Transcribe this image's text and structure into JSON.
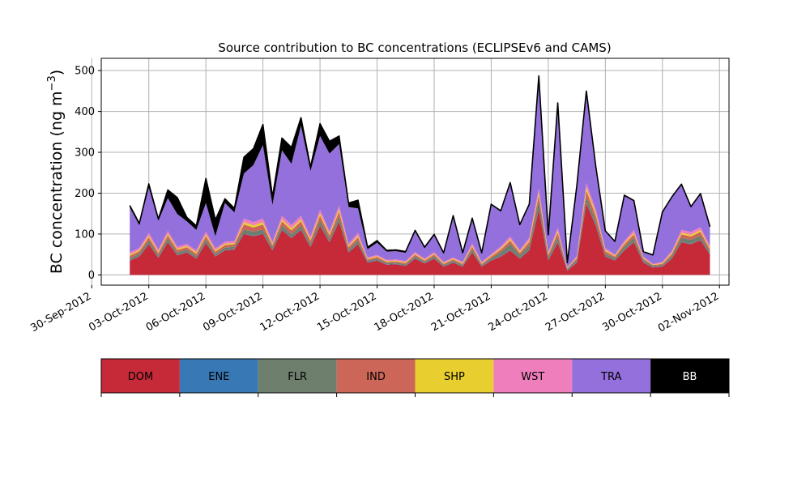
{
  "chart_data": {
    "type": "area",
    "stacked": true,
    "title": "Source contribution to BC concentrations (ECLIPSEv6 and CAMS)",
    "xlabel": "",
    "ylabel": "BC concentration (ng m",
    "ylabel_superscript": "−3",
    "ylabel_close": ")",
    "ylim": [
      -25,
      530
    ],
    "xlim": [
      "2012-09-30T12:00",
      "2012-11-02T12:00"
    ],
    "x_ticks": [
      "30-Sep-2012",
      "03-Oct-2012",
      "06-Oct-2012",
      "09-Oct-2012",
      "12-Oct-2012",
      "15-Oct-2012",
      "18-Oct-2012",
      "21-Oct-2012",
      "24-Oct-2012",
      "27-Oct-2012",
      "30-Oct-2012",
      "02-Nov-2012"
    ],
    "y_ticks": [
      0,
      100,
      200,
      300,
      400,
      500
    ],
    "grid": true,
    "legend_placement": "bottom",
    "x": [
      "2012-10-02T00:00",
      "2012-10-02T12:00",
      "2012-10-03T00:00",
      "2012-10-03T12:00",
      "2012-10-04T00:00",
      "2012-10-04T12:00",
      "2012-10-05T00:00",
      "2012-10-05T12:00",
      "2012-10-06T00:00",
      "2012-10-06T12:00",
      "2012-10-07T00:00",
      "2012-10-07T12:00",
      "2012-10-08T00:00",
      "2012-10-08T12:00",
      "2012-10-09T00:00",
      "2012-10-09T12:00",
      "2012-10-10T00:00",
      "2012-10-10T12:00",
      "2012-10-11T00:00",
      "2012-10-11T12:00",
      "2012-10-12T00:00",
      "2012-10-12T12:00",
      "2012-10-13T00:00",
      "2012-10-13T12:00",
      "2012-10-14T00:00",
      "2012-10-14T12:00",
      "2012-10-15T00:00",
      "2012-10-15T12:00",
      "2012-10-16T00:00",
      "2012-10-16T12:00",
      "2012-10-17T00:00",
      "2012-10-17T12:00",
      "2012-10-18T00:00",
      "2012-10-18T12:00",
      "2012-10-19T00:00",
      "2012-10-19T12:00",
      "2012-10-20T00:00",
      "2012-10-20T12:00",
      "2012-10-21T00:00",
      "2012-10-21T12:00",
      "2012-10-22T00:00",
      "2012-10-22T12:00",
      "2012-10-23T00:00",
      "2012-10-23T12:00",
      "2012-10-24T00:00",
      "2012-10-24T12:00",
      "2012-10-25T00:00",
      "2012-10-25T12:00",
      "2012-10-26T00:00",
      "2012-10-26T12:00",
      "2012-10-27T00:00",
      "2012-10-27T12:00",
      "2012-10-28T00:00",
      "2012-10-28T12:00",
      "2012-10-29T00:00",
      "2012-10-29T12:00",
      "2012-10-30T00:00",
      "2012-10-30T12:00",
      "2012-10-31T00:00",
      "2012-10-31T12:00",
      "2012-11-01T00:00",
      "2012-11-01T12:00"
    ],
    "series": [
      {
        "name": "DOM",
        "color": "#c62a39",
        "values": [
          35,
          45,
          75,
          42,
          80,
          48,
          55,
          40,
          78,
          45,
          60,
          62,
          100,
          95,
          100,
          60,
          110,
          90,
          110,
          68,
          120,
          80,
          130,
          55,
          75,
          30,
          35,
          25,
          26,
          22,
          40,
          28,
          40,
          20,
          30,
          20,
          55,
          20,
          35,
          45,
          60,
          40,
          60,
          160,
          35,
          80,
          10,
          30,
          175,
          120,
          45,
          35,
          60,
          80,
          30,
          18,
          20,
          40,
          80,
          75,
          85,
          50
        ]
      },
      {
        "name": "ENE",
        "color": "#3878b4",
        "values": [
          1,
          1,
          1,
          1,
          1,
          1,
          1,
          1,
          1,
          1,
          1,
          1,
          1,
          1,
          1,
          1,
          1,
          1,
          1,
          1,
          1,
          1,
          1,
          1,
          1,
          1,
          1,
          1,
          1,
          1,
          1,
          1,
          1,
          1,
          1,
          1,
          1,
          1,
          1,
          1,
          1,
          1,
          1,
          1,
          1,
          1,
          1,
          1,
          1,
          1,
          1,
          1,
          1,
          1,
          1,
          1,
          1,
          1,
          1,
          1,
          1,
          1
        ]
      },
      {
        "name": "FLR",
        "color": "#6f7f6e",
        "values": [
          5,
          6,
          8,
          5,
          8,
          6,
          6,
          5,
          8,
          5,
          6,
          6,
          10,
          10,
          10,
          6,
          10,
          8,
          10,
          7,
          12,
          8,
          12,
          6,
          8,
          4,
          4,
          3,
          3,
          3,
          5,
          3,
          5,
          3,
          4,
          3,
          7,
          3,
          5,
          10,
          15,
          8,
          12,
          20,
          8,
          12,
          3,
          6,
          15,
          12,
          6,
          5,
          8,
          10,
          5,
          3,
          3,
          6,
          10,
          10,
          10,
          6
        ]
      },
      {
        "name": "IND",
        "color": "#cc6658",
        "values": [
          6,
          6,
          8,
          6,
          8,
          6,
          6,
          6,
          8,
          6,
          6,
          6,
          12,
          10,
          12,
          6,
          10,
          10,
          10,
          8,
          12,
          8,
          12,
          6,
          8,
          3,
          4,
          3,
          3,
          3,
          4,
          3,
          4,
          3,
          3,
          3,
          6,
          3,
          4,
          6,
          8,
          5,
          8,
          14,
          5,
          10,
          2,
          4,
          15,
          12,
          6,
          4,
          6,
          8,
          4,
          2,
          3,
          5,
          8,
          8,
          9,
          6
        ]
      },
      {
        "name": "SHP",
        "color": "#e8cf2f",
        "values": [
          3,
          3,
          4,
          3,
          4,
          3,
          3,
          3,
          4,
          3,
          3,
          3,
          6,
          5,
          6,
          3,
          5,
          5,
          5,
          4,
          6,
          4,
          6,
          3,
          4,
          2,
          2,
          2,
          2,
          2,
          2,
          2,
          2,
          2,
          2,
          2,
          3,
          2,
          2,
          3,
          4,
          3,
          4,
          7,
          3,
          5,
          1,
          2,
          8,
          6,
          3,
          2,
          3,
          4,
          2,
          1,
          2,
          3,
          4,
          4,
          5,
          3
        ]
      },
      {
        "name": "WST",
        "color": "#ef7ebc",
        "values": [
          5,
          5,
          7,
          5,
          7,
          5,
          5,
          5,
          7,
          5,
          5,
          5,
          9,
          8,
          9,
          5,
          9,
          8,
          9,
          6,
          9,
          6,
          9,
          5,
          7,
          3,
          3,
          3,
          3,
          3,
          4,
          3,
          4,
          3,
          3,
          3,
          5,
          3,
          4,
          5,
          6,
          4,
          6,
          10,
          4,
          8,
          2,
          3,
          11,
          9,
          5,
          3,
          5,
          7,
          3,
          2,
          3,
          4,
          7,
          7,
          7,
          5
        ]
      },
      {
        "name": "TRA",
        "color": "#9370db",
        "values": [
          110,
          55,
          110,
          70,
          80,
          80,
          55,
          50,
          70,
          30,
          95,
          70,
          110,
          140,
          180,
          90,
          160,
          150,
          220,
          160,
          180,
          190,
          150,
          90,
          60,
          20,
          30,
          20,
          20,
          20,
          50,
          25,
          40,
          20,
          100,
          20,
          60,
          20,
          120,
          85,
          130,
          60,
          80,
          270,
          40,
          300,
          10,
          170,
          220,
          100,
          40,
          30,
          110,
          70,
          10,
          20,
          120,
          130,
          110,
          60,
          80,
          45
        ]
      },
      {
        "name": "BB",
        "color": "#000000",
        "values": [
          5,
          5,
          10,
          5,
          20,
          40,
          10,
          10,
          60,
          40,
          10,
          10,
          40,
          40,
          50,
          20,
          30,
          40,
          20,
          10,
          30,
          30,
          20,
          10,
          20,
          5,
          5,
          3,
          3,
          3,
          3,
          3,
          3,
          2,
          2,
          2,
          2,
          2,
          2,
          2,
          2,
          2,
          2,
          5,
          2,
          5,
          1,
          2,
          5,
          5,
          2,
          2,
          2,
          2,
          2,
          2,
          2,
          2,
          2,
          2,
          2,
          2
        ]
      }
    ]
  }
}
